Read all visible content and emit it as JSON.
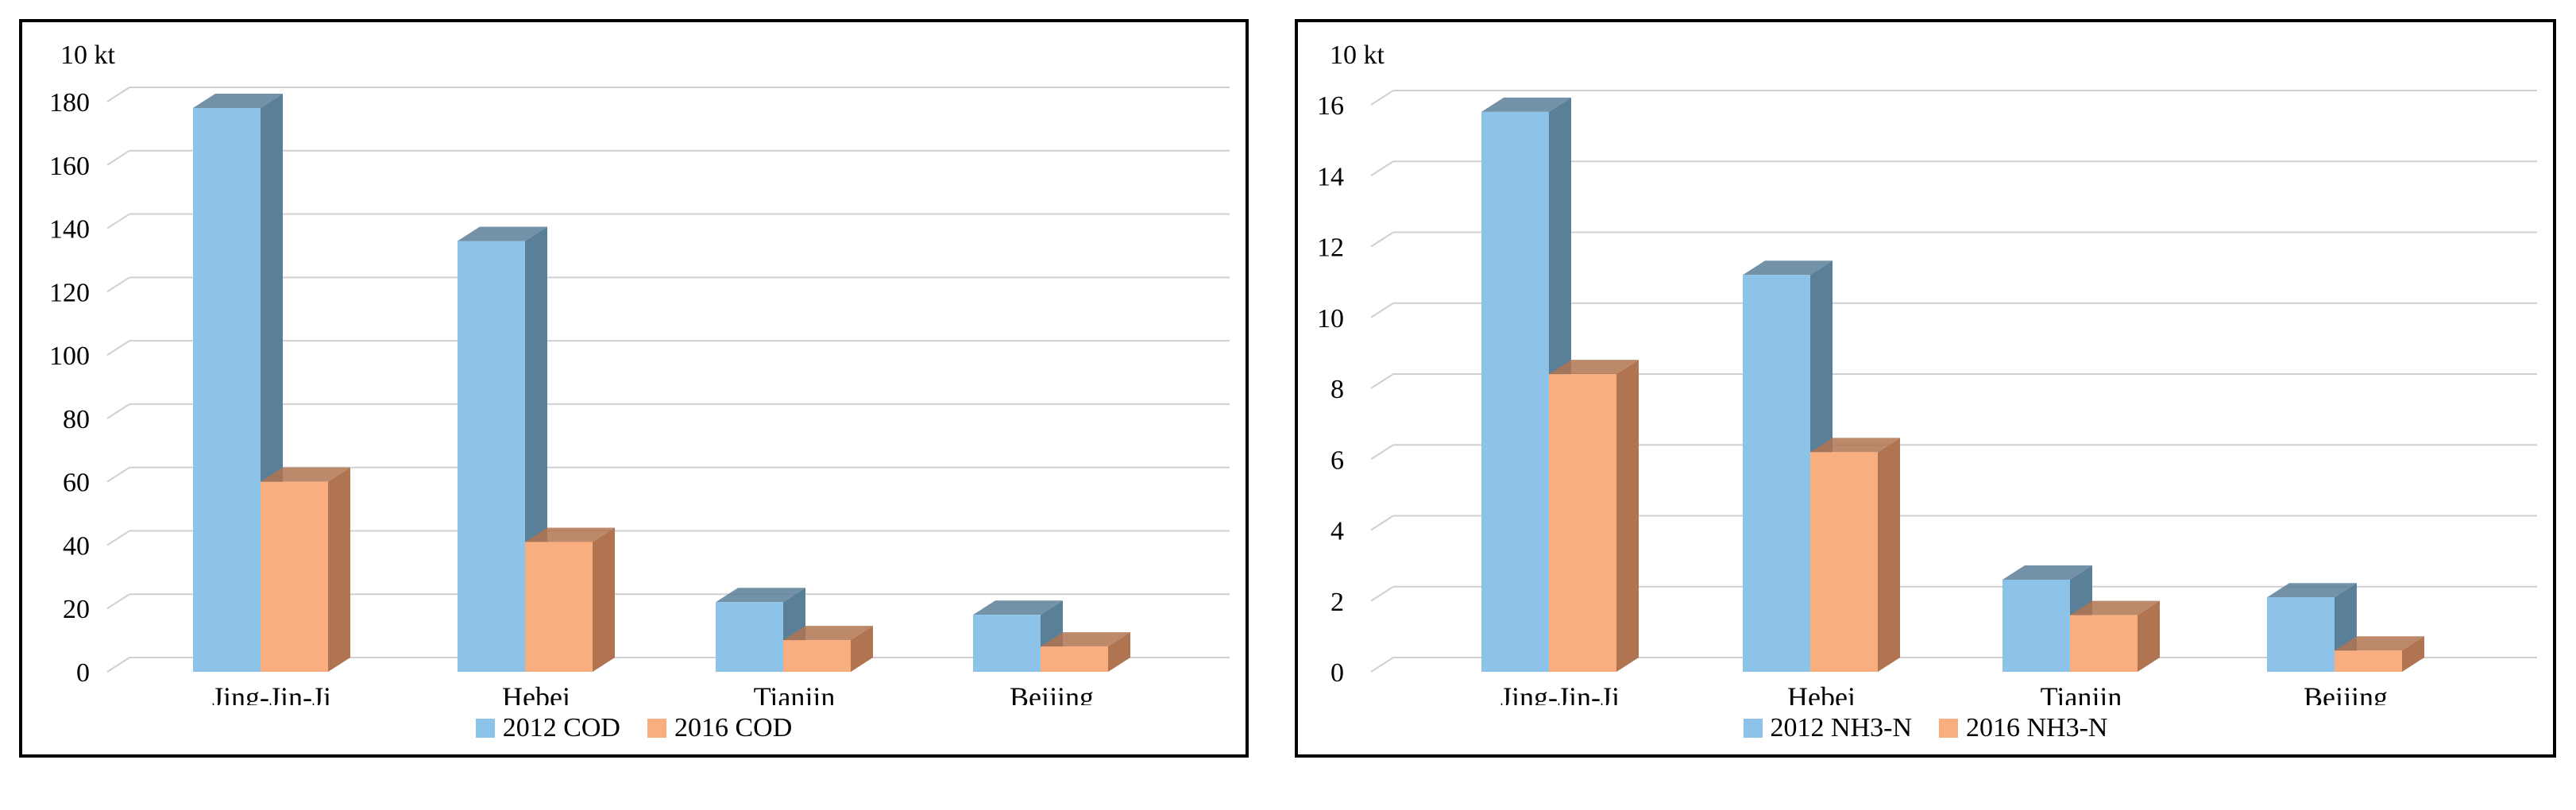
{
  "chart_data": [
    {
      "type": "bar",
      "unit_label": "10 kt",
      "categories": [
        "Jing-Jin-Ji",
        "Hebei",
        "Tianjin",
        "Beijing"
      ],
      "series": [
        {
          "name": "2012 COD",
          "values": [
            178,
            136,
            22,
            18
          ],
          "color": "#8DC3E8",
          "side_color": "#5A7F99"
        },
        {
          "name": "2016 COD",
          "values": [
            60,
            41,
            10,
            8
          ],
          "color": "#F9AE7F",
          "side_color": "#B07450"
        }
      ],
      "ylim": [
        0,
        180
      ],
      "yticks": [
        0,
        20,
        40,
        60,
        80,
        100,
        120,
        140,
        160,
        180
      ],
      "grid": true,
      "legend_position": "bottom"
    },
    {
      "type": "bar",
      "unit_label": "10 kt",
      "categories": [
        "Jing-Jin-Ji",
        "Hebei",
        "Tianjin",
        "Beijing"
      ],
      "series": [
        {
          "name": "2012 NH3-N",
          "values": [
            15.8,
            11.2,
            2.6,
            2.1
          ],
          "color": "#8DC3E8",
          "side_color": "#5A7F99"
        },
        {
          "name": "2016 NH3-N",
          "values": [
            8.4,
            6.2,
            1.6,
            0.6
          ],
          "color": "#F9AE7F",
          "side_color": "#B07450"
        }
      ],
      "ylim": [
        0,
        16
      ],
      "yticks": [
        0,
        2,
        4,
        6,
        8,
        10,
        12,
        14,
        16
      ],
      "grid": true,
      "legend_position": "bottom"
    }
  ]
}
